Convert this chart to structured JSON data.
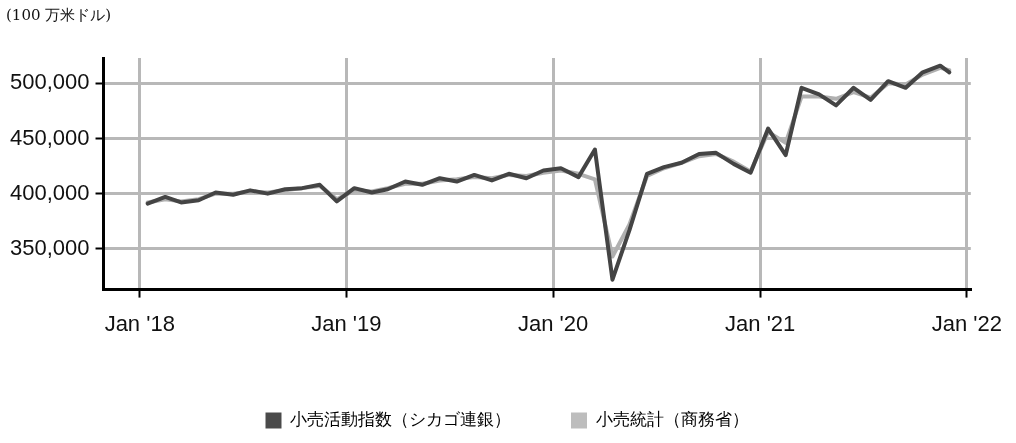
{
  "chart_data": {
    "type": "line",
    "ylabel": "(100 万米ドル)",
    "x": [
      "2018-01-15",
      "2018-02-15",
      "2018-03-15",
      "2018-04-15",
      "2018-05-15",
      "2018-06-15",
      "2018-07-15",
      "2018-08-15",
      "2018-09-15",
      "2018-10-15",
      "2018-11-15",
      "2018-12-15",
      "2019-01-15",
      "2019-02-15",
      "2019-03-15",
      "2019-04-15",
      "2019-05-15",
      "2019-06-15",
      "2019-07-15",
      "2019-08-15",
      "2019-09-15",
      "2019-10-15",
      "2019-11-15",
      "2019-12-15",
      "2020-01-15",
      "2020-02-15",
      "2020-03-15",
      "2020-04-15",
      "2020-05-15",
      "2020-06-15",
      "2020-07-15",
      "2020-08-15",
      "2020-09-15",
      "2020-10-15",
      "2020-11-15",
      "2020-12-15",
      "2021-01-15",
      "2021-02-15",
      "2021-03-15",
      "2021-04-15",
      "2021-05-15",
      "2021-06-15",
      "2021-07-15",
      "2021-08-15",
      "2021-09-15",
      "2021-10-15",
      "2021-11-15",
      "2021-12-01"
    ],
    "series": [
      {
        "name": "小売活動指数（シカゴ連銀）",
        "color": "#444444",
        "values": [
          391000,
          397000,
          392000,
          394000,
          401000,
          399000,
          403000,
          400000,
          404000,
          405000,
          408000,
          393000,
          405000,
          401000,
          404000,
          411000,
          408000,
          414000,
          411000,
          417000,
          412000,
          418000,
          414000,
          421000,
          423000,
          415000,
          440000,
          322000,
          367000,
          418000,
          424000,
          428000,
          436000,
          437000,
          427000,
          419000,
          459000,
          435000,
          496000,
          490000,
          480000,
          496000,
          485000,
          502000,
          496000,
          510000,
          516000,
          510000
        ]
      },
      {
        "name": "小売統計（商務省）",
        "color": "#b0b0b0",
        "values": [
          392000,
          395000,
          393000,
          395000,
          400000,
          400000,
          402000,
          401000,
          403000,
          405000,
          407000,
          395000,
          403000,
          402000,
          405000,
          409000,
          409000,
          412000,
          413000,
          415000,
          414000,
          417000,
          416000,
          419000,
          421000,
          418000,
          413000,
          343000,
          372000,
          416000,
          423000,
          428000,
          434000,
          436000,
          429000,
          420000,
          456000,
          446000,
          488000,
          488000,
          486000,
          492000,
          487000,
          500000,
          499000,
          508000,
          514000,
          512000
        ]
      }
    ],
    "xlim": [
      "2017-10-29",
      "2022-01-08"
    ],
    "xticks": [
      {
        "value": "2018-01-01",
        "label": "Jan '18"
      },
      {
        "value": "2019-01-01",
        "label": "Jan '19"
      },
      {
        "value": "2020-01-01",
        "label": "Jan '20"
      },
      {
        "value": "2021-01-01",
        "label": "Jan '21"
      },
      {
        "value": "2022-01-01",
        "label": "Jan '22"
      }
    ],
    "ylim": [
      313000,
      523000
    ],
    "yticks": [
      {
        "value": 350000,
        "label": "350,000"
      },
      {
        "value": 400000,
        "label": "400,000"
      },
      {
        "value": 450000,
        "label": "450,000"
      },
      {
        "value": 500000,
        "label": "500,000"
      }
    ],
    "grid": true,
    "legend": "bottom",
    "line_style": "solid",
    "marker": "none"
  }
}
